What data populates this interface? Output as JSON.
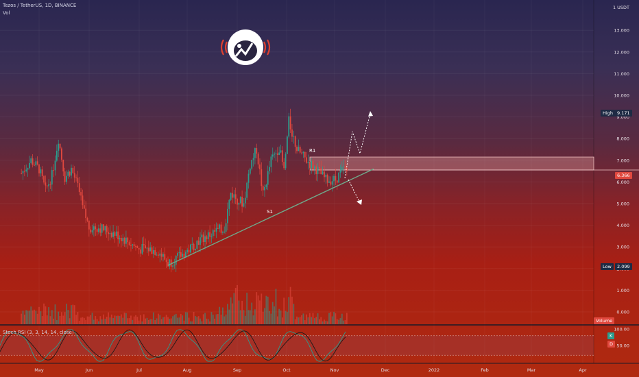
{
  "header": {
    "symbol_line": "Tezos / TetherUS, 1D, BINANCE",
    "vol_label": "Vol",
    "rsi_label": "Stoch RSI (3, 3, 14, 14, close)"
  },
  "axis": {
    "currency": "USDT",
    "price_ticks": [
      "13.000",
      "12.000",
      "11.000",
      "10.000",
      "9.000",
      "8.000",
      "7.000",
      "6.000",
      "5.000",
      "4.000",
      "3.000",
      "2.000",
      "1.000",
      "0.000"
    ],
    "rsi_ticks": [
      "100.00",
      "50.00"
    ],
    "time_ticks": [
      "May",
      "Jun",
      "Jul",
      "Aug",
      "Sep",
      "Oct",
      "Nov",
      "Dec",
      "2022",
      "Feb",
      "Mar",
      "Apr"
    ]
  },
  "badges": {
    "high_label": "High",
    "high_value": "9.171",
    "low_label": "Low",
    "low_value": "2.099",
    "last_price": "6.366",
    "volume_label": "Volume",
    "rsi_k": "K",
    "rsi_d": "D"
  },
  "annotations": {
    "r1": "R1",
    "s1": "S1"
  },
  "colors": {
    "up": "#2a9d8f",
    "down": "#e0483e",
    "trendline": "#6fa88a",
    "zone": "#e9a3a3"
  },
  "chart_data": {
    "type": "candlestick",
    "symbol": "Tezos / TetherUS",
    "interval": "1D",
    "exchange": "BINANCE",
    "y_ticks": [
      0,
      1,
      2,
      3,
      4,
      5,
      6,
      7,
      8,
      9,
      10,
      11,
      12,
      13
    ],
    "ylim": [
      0,
      13.5
    ],
    "x_ticks": [
      "May",
      "Jun",
      "Jul",
      "Aug",
      "Sep",
      "Oct",
      "Nov",
      "Dec",
      "2022",
      "Feb",
      "Mar",
      "Apr"
    ],
    "high": 9.171,
    "low": 2.099,
    "last": 6.366,
    "resistance_zone": [
      6.55,
      7.15
    ],
    "trendline": {
      "from": [
        "Jul 20",
        2.15
      ],
      "to": [
        "Nov 18",
        6.6
      ]
    },
    "projections": [
      {
        "direction": "up",
        "target": 9.2
      },
      {
        "direction": "down",
        "target": 5.0
      }
    ],
    "price_path": [
      [
        "Apr 20",
        6.4
      ],
      [
        "Apr 26",
        7.0
      ],
      [
        "May 1",
        6.6
      ],
      [
        "May 5",
        5.6
      ],
      [
        "May 9",
        6.3
      ],
      [
        "May 13",
        8.0
      ],
      [
        "May 17",
        6.2
      ],
      [
        "May 21",
        6.6
      ],
      [
        "May 25",
        5.8
      ],
      [
        "May 28",
        4.8
      ],
      [
        "Jun 1",
        3.9
      ],
      [
        "Jun 7",
        3.9
      ],
      [
        "Jun 14",
        3.7
      ],
      [
        "Jun 20",
        3.5
      ],
      [
        "Jun 26",
        3.2
      ],
      [
        "Jul 2",
        2.9
      ],
      [
        "Jul 8",
        2.9
      ],
      [
        "Jul 14",
        2.8
      ],
      [
        "Jul 20",
        2.25
      ],
      [
        "Jul 26",
        2.5
      ],
      [
        "Aug 1",
        2.8
      ],
      [
        "Aug 8",
        3.3
      ],
      [
        "Aug 16",
        3.6
      ],
      [
        "Aug 24",
        3.9
      ],
      [
        "Aug 28",
        5.5
      ],
      [
        "Sep 1",
        5.2
      ],
      [
        "Sep 5",
        5.0
      ],
      [
        "Sep 9",
        6.8
      ],
      [
        "Sep 13",
        7.5
      ],
      [
        "Sep 17",
        5.4
      ],
      [
        "Sep 22",
        7.0
      ],
      [
        "Sep 27",
        7.6
      ],
      [
        "Sep 30",
        6.5
      ],
      [
        "Oct 3",
        8.8
      ],
      [
        "Oct 8",
        7.5
      ],
      [
        "Oct 14",
        7.0
      ],
      [
        "Oct 20",
        6.6
      ],
      [
        "Oct 26",
        6.1
      ],
      [
        "Nov 1",
        6.1
      ],
      [
        "Nov 6",
        6.6
      ],
      [
        "Nov 9",
        6.37
      ]
    ],
    "panels": [
      {
        "name": "Vol",
        "type": "bar"
      },
      {
        "name": "Stoch RSI (3, 3, 14, 14, close)",
        "type": "line",
        "ylim": [
          0,
          100
        ],
        "y_ticks": [
          50,
          100
        ]
      }
    ]
  }
}
